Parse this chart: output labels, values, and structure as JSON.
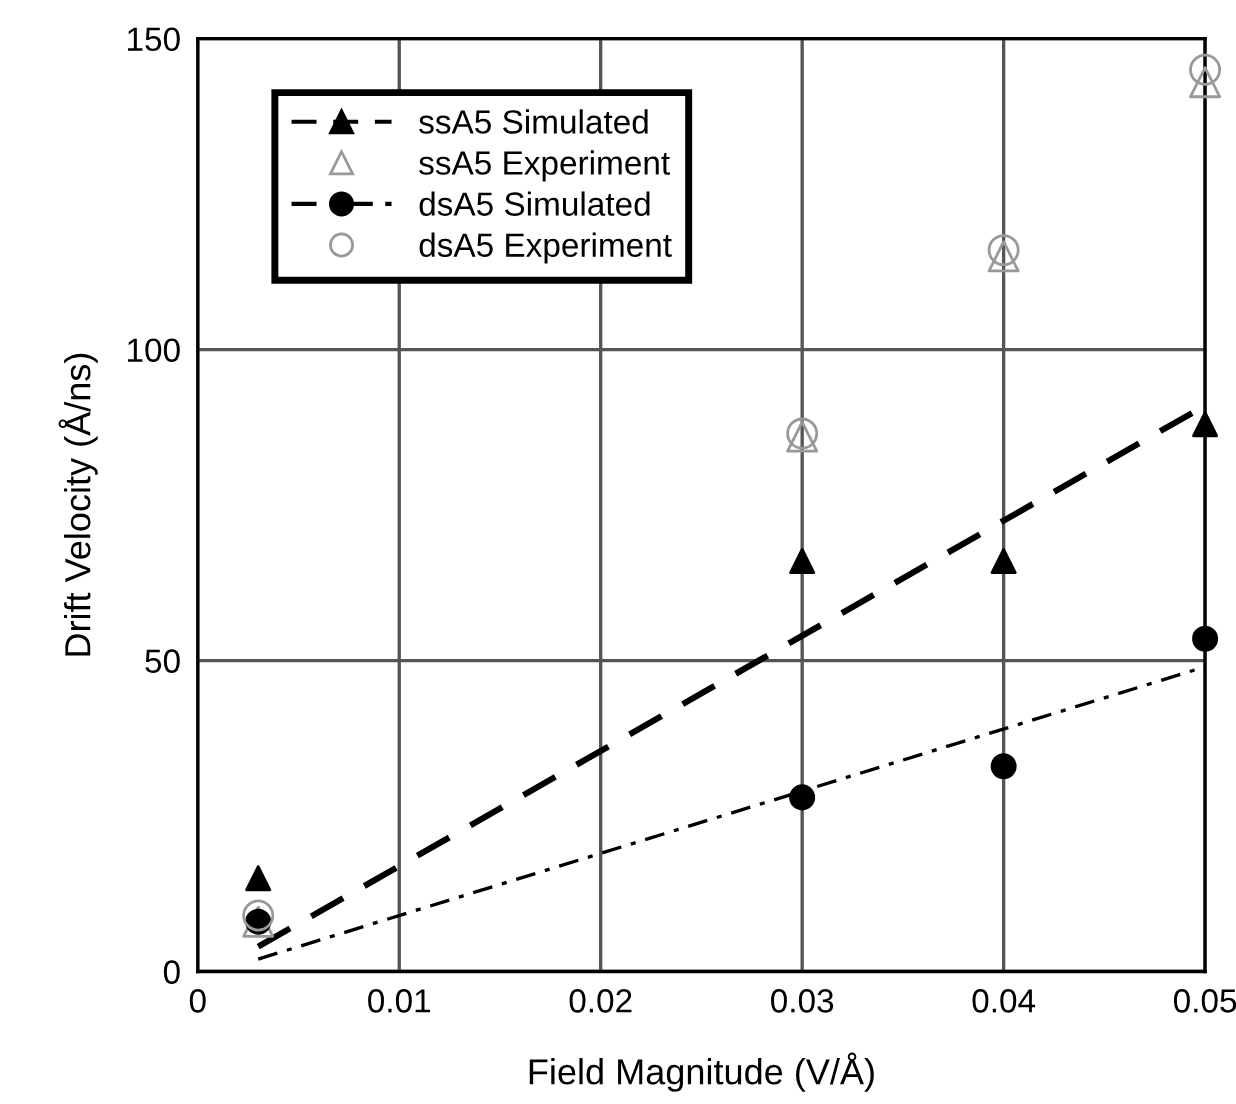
{
  "chart_data": {
    "type": "scatter",
    "xlabel": "Field Magnitude (V/Å)",
    "ylabel": "Drift Velocity (Å/ns)",
    "xlim": [
      0,
      0.05
    ],
    "xticks": [
      0,
      0.01,
      0.02,
      0.03,
      0.04,
      0.05
    ],
    "ylim": [
      0,
      150
    ],
    "yticks": [
      0,
      50,
      100,
      150
    ],
    "grid": true,
    "legend": "top left",
    "series": [
      {
        "name": "ssA5 Simulated",
        "marker": "triangle",
        "color": "#000000",
        "x": [
          0.003,
          0.03,
          0.04,
          0.05
        ],
        "values": [
          15,
          66,
          66,
          88
        ]
      },
      {
        "type": "line",
        "line_style": "dashed",
        "color": "#000000",
        "x": [
          0.003,
          0.05
        ],
        "values": [
          4,
          91
        ]
      },
      {
        "name": "ssA5 Experiment",
        "marker": "triangle",
        "color": "#999999",
        "x": [
          0.003,
          0.03,
          0.04,
          0.05
        ],
        "values": [
          8,
          86,
          115,
          143
        ]
      },
      {
        "name": "dsA5 Simulated",
        "marker": "circle",
        "color": "#000000",
        "x": [
          0.003,
          0.03,
          0.04,
          0.05
        ],
        "values": [
          8,
          28,
          33,
          53.5
        ]
      },
      {
        "type": "line",
        "line_style": "dashdot",
        "color": "#000000",
        "x": [
          0.003,
          0.05
        ],
        "values": [
          2,
          49
        ]
      },
      {
        "name": "dsA5 Experiment",
        "marker": "circle",
        "color": "#999999",
        "x": [
          0.003,
          0.03,
          0.04,
          0.05
        ],
        "values": [
          9,
          86.5,
          116,
          145
        ]
      }
    ]
  }
}
